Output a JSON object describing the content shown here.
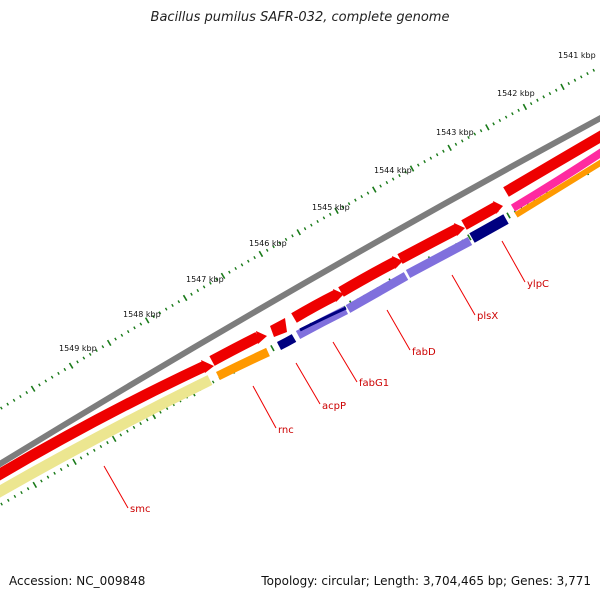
{
  "title": "Bacillus pumilus SAFR-032, complete genome",
  "footer": {
    "accession": "Accession: NC_009848",
    "summary": "Topology: circular; Length: 3,704,465 bp; Genes: 3,771"
  },
  "scale": {
    "tick_labels": [
      "1541 kbp",
      "1542 kbp",
      "1543 kbp",
      "1544 kbp",
      "1545 kbp",
      "1546 kbp",
      "1547 kbp",
      "1548 kbp",
      "1549 kbp"
    ]
  },
  "genes": [
    "smc",
    "rnc",
    "acpP",
    "fabG1",
    "fabD",
    "plsX",
    "ylpC"
  ],
  "colors": {
    "backbone": "#7d7d7d",
    "cds": "#ee0000",
    "cog_l": "#ece690",
    "cog_k": "#ff9900",
    "cog_i": "#8070dd",
    "cog_q": "#000080",
    "cog_s": "#ff2aa0",
    "tick": "#1a7a1a",
    "label": "#cc0000"
  }
}
